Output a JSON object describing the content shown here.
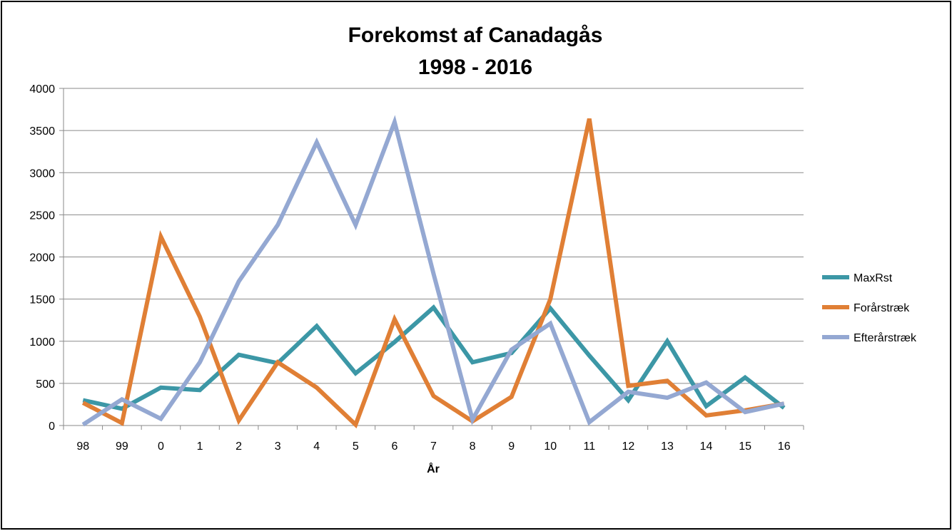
{
  "chart_data": {
    "type": "line",
    "title_line1": "Forekomst af Canadagås",
    "title_line2": "1998 - 2016",
    "xlabel": "År",
    "ylabel": "",
    "ylim": [
      0,
      4000
    ],
    "yticks": [
      0,
      500,
      1000,
      1500,
      2000,
      2500,
      3000,
      3500,
      4000
    ],
    "categories": [
      "98",
      "99",
      "0",
      "1",
      "2",
      "3",
      "4",
      "5",
      "6",
      "7",
      "8",
      "9",
      "10",
      "11",
      "12",
      "13",
      "14",
      "15",
      "16"
    ],
    "grid": true,
    "legend_position": "right",
    "series": [
      {
        "name": "MaxRst",
        "color": "#3C97A6",
        "values": [
          300,
          200,
          450,
          420,
          840,
          740,
          1180,
          620,
          990,
          1400,
          750,
          860,
          1390,
          830,
          300,
          1000,
          230,
          570,
          210
        ]
      },
      {
        "name": "Forårstræk",
        "color": "#E07F35",
        "values": [
          270,
          30,
          2240,
          1290,
          60,
          750,
          450,
          10,
          1260,
          350,
          50,
          340,
          1500,
          3640,
          470,
          530,
          120,
          180,
          260
        ]
      },
      {
        "name": "Efterårstræk",
        "color": "#94A8D2",
        "values": [
          10,
          310,
          80,
          750,
          1710,
          2380,
          3360,
          2380,
          3600,
          1800,
          70,
          900,
          1210,
          40,
          400,
          330,
          510,
          160,
          260
        ]
      }
    ]
  }
}
